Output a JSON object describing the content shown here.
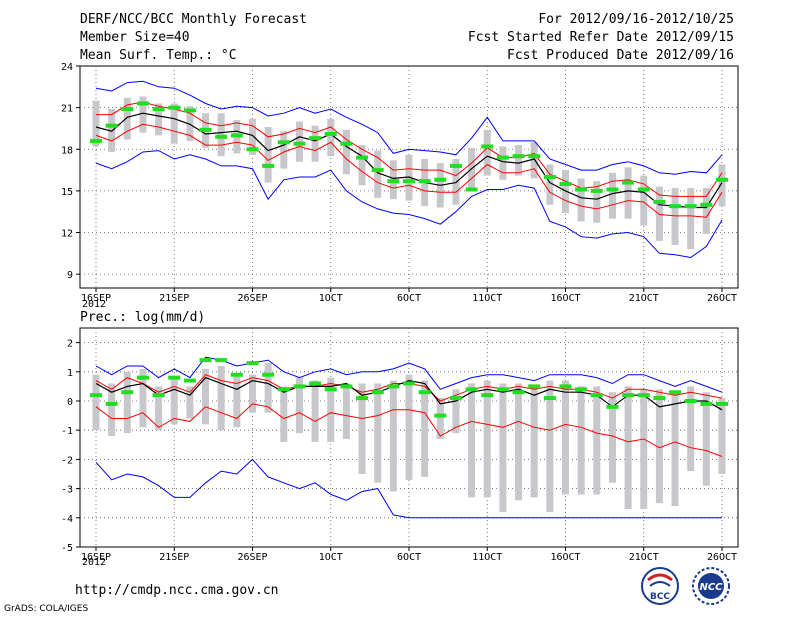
{
  "header": {
    "title": "DERF/NCC/BCC Monthly Forecast",
    "member_size": "Member Size=40",
    "variable": "Mean Surf. Temp.: °C",
    "period": "For 2012/09/16-2012/10/25",
    "started": "Fcst Started Refer Date 2012/09/15",
    "produced": "Fcst Produced Date 2012/09/16"
  },
  "footer": {
    "url": "http://cmdp.ncc.cma.gov.cn",
    "credit": "GrADS: COLA/IGES",
    "logo_left": "BCC",
    "logo_right": "NCC"
  },
  "colors": {
    "envelope": "#0000ff",
    "spread": "#ff0000",
    "mean": "#000000",
    "box": "#c8c8cc",
    "marker": "#22dd22"
  },
  "chart_data": [
    {
      "type": "line",
      "name": "temperature",
      "ylabel": "Mean Surf. Temp.: °C",
      "ylim": [
        8,
        24
      ],
      "yticks": [
        9,
        12,
        15,
        18,
        21,
        24
      ],
      "xlim": [
        0,
        40
      ],
      "xticks": [
        {
          "x": 0,
          "label": "16SEP",
          "sub": "2012"
        },
        {
          "x": 5,
          "label": "21SEP"
        },
        {
          "x": 10,
          "label": "26SEP"
        },
        {
          "x": 15,
          "label": "1OCT"
        },
        {
          "x": 20,
          "label": "6OCT"
        },
        {
          "x": 25,
          "label": "11OCT"
        },
        {
          "x": 30,
          "label": "16OCT"
        },
        {
          "x": 35,
          "label": "21OCT"
        },
        {
          "x": 40,
          "label": "26OCT"
        }
      ],
      "grid": true,
      "series": [
        {
          "name": "max",
          "role": "envelope",
          "values": [
            22.4,
            22.2,
            22.8,
            22.9,
            22.5,
            22.4,
            21.9,
            21.3,
            20.9,
            21.1,
            21.0,
            20.4,
            20.6,
            21.0,
            20.6,
            20.9,
            20.3,
            19.8,
            19.2,
            17.7,
            18.0,
            17.9,
            17.8,
            17.6,
            18.8,
            20.3,
            18.6,
            18.6,
            18.6,
            17.3,
            16.9,
            16.5,
            16.5,
            16.9,
            17.1,
            16.8,
            16.3,
            16.2,
            16.4,
            16.3,
            17.6
          ]
        },
        {
          "name": "upper",
          "role": "spread",
          "values": [
            20.5,
            20.5,
            21.2,
            21.4,
            21.1,
            20.9,
            20.6,
            19.9,
            19.7,
            19.9,
            19.7,
            18.9,
            19.1,
            19.5,
            19.2,
            19.6,
            18.7,
            18.0,
            17.4,
            16.5,
            16.6,
            16.5,
            16.5,
            16.1,
            17.0,
            18.1,
            17.4,
            17.4,
            17.7,
            16.2,
            15.7,
            15.2,
            15.3,
            15.7,
            15.8,
            15.5,
            14.7,
            14.6,
            14.6,
            14.6,
            16.3
          ]
        },
        {
          "name": "mean",
          "role": "mean",
          "values": [
            19.6,
            19.3,
            20.3,
            20.6,
            20.4,
            20.2,
            19.8,
            19.1,
            19.2,
            19.3,
            19.0,
            17.9,
            18.3,
            18.9,
            18.6,
            19.1,
            18.2,
            17.5,
            16.3,
            15.9,
            16.0,
            15.6,
            15.4,
            15.6,
            16.6,
            17.5,
            17.1,
            17.0,
            17.3,
            15.6,
            15.0,
            14.5,
            14.4,
            14.8,
            15.0,
            14.9,
            14.0,
            13.9,
            13.8,
            13.8,
            15.6
          ]
        },
        {
          "name": "lower",
          "role": "spread",
          "values": [
            19.0,
            18.6,
            19.3,
            19.8,
            19.6,
            19.3,
            19.0,
            18.3,
            18.3,
            18.5,
            18.3,
            17.2,
            17.8,
            18.2,
            17.9,
            18.5,
            17.3,
            16.4,
            15.6,
            15.2,
            15.4,
            15.0,
            14.9,
            14.9,
            15.9,
            16.9,
            16.3,
            16.3,
            16.6,
            14.9,
            14.3,
            13.9,
            13.7,
            14.0,
            14.3,
            14.2,
            13.3,
            13.2,
            13.2,
            13.1,
            14.9
          ]
        },
        {
          "name": "min",
          "role": "envelope",
          "values": [
            17.0,
            16.6,
            17.1,
            17.8,
            17.9,
            17.3,
            17.6,
            17.3,
            16.8,
            16.8,
            16.6,
            14.4,
            15.8,
            16.0,
            16.0,
            16.5,
            15.0,
            14.2,
            13.7,
            13.4,
            13.3,
            13.0,
            12.6,
            13.5,
            14.6,
            15.1,
            15.1,
            15.4,
            15.2,
            12.8,
            12.4,
            11.7,
            11.6,
            11.9,
            12.0,
            11.7,
            10.5,
            10.4,
            10.2,
            11.0,
            12.9
          ]
        },
        {
          "name": "box_top",
          "role": "box",
          "values": [
            21.5,
            20.9,
            21.7,
            21.8,
            21.3,
            21.3,
            21.1,
            20.6,
            20.6,
            20.1,
            20.2,
            19.6,
            19.3,
            20.0,
            19.7,
            20.2,
            19.4,
            18.3,
            17.9,
            17.2,
            17.6,
            17.3,
            17.0,
            17.3,
            18.1,
            19.4,
            18.2,
            18.3,
            18.5,
            16.9,
            16.5,
            15.9,
            15.7,
            16.3,
            16.7,
            16.1,
            15.3,
            15.2,
            15.2,
            15.2,
            16.9
          ]
        },
        {
          "name": "box_bottom",
          "role": "box",
          "values": [
            18.2,
            17.8,
            18.7,
            19.2,
            19.0,
            18.4,
            18.6,
            18.1,
            17.5,
            17.7,
            17.6,
            15.6,
            16.6,
            17.1,
            17.1,
            17.5,
            16.2,
            15.4,
            14.5,
            14.4,
            14.3,
            13.9,
            13.8,
            14.0,
            15.0,
            16.1,
            15.8,
            16.1,
            15.9,
            14.0,
            13.4,
            12.8,
            12.7,
            13.0,
            13.0,
            12.5,
            11.4,
            11.1,
            10.8,
            11.9,
            13.9
          ]
        },
        {
          "name": "marker",
          "role": "marker",
          "values": [
            18.6,
            19.7,
            20.9,
            21.3,
            20.9,
            21.0,
            20.8,
            19.4,
            18.9,
            19.0,
            18.0,
            16.8,
            18.5,
            18.4,
            18.8,
            19.1,
            18.4,
            17.4,
            16.5,
            15.7,
            15.7,
            15.7,
            15.8,
            16.8,
            15.1,
            18.2,
            17.4,
            17.5,
            17.5,
            16.0,
            15.5,
            15.1,
            15.0,
            15.1,
            15.6,
            15.1,
            14.2,
            13.9,
            13.9,
            14.0,
            15.8
          ]
        }
      ]
    },
    {
      "type": "line",
      "name": "precipitation",
      "ylabel": "Prec.: log(mm/d)",
      "ylim": [
        -5,
        2.5
      ],
      "yticks": [
        -5,
        -4,
        -3,
        -2,
        -1,
        0,
        1,
        2
      ],
      "xlim": [
        0,
        40
      ],
      "xticks": [
        {
          "x": 0,
          "label": "16SEP",
          "sub": "2012"
        },
        {
          "x": 5,
          "label": "21SEP"
        },
        {
          "x": 10,
          "label": "26SEP"
        },
        {
          "x": 15,
          "label": "1OCT"
        },
        {
          "x": 20,
          "label": "6OCT"
        },
        {
          "x": 25,
          "label": "11OCT"
        },
        {
          "x": 30,
          "label": "16OCT"
        },
        {
          "x": 35,
          "label": "21OCT"
        },
        {
          "x": 40,
          "label": "26OCT"
        }
      ],
      "grid": true,
      "series": [
        {
          "name": "max",
          "role": "envelope",
          "values": [
            1.2,
            0.9,
            1.2,
            1.2,
            0.8,
            1.1,
            0.8,
            1.5,
            1.4,
            1.2,
            1.3,
            1.4,
            1.0,
            0.8,
            1.0,
            1.1,
            0.9,
            1.0,
            1.0,
            1.1,
            1.3,
            1.1,
            0.4,
            0.6,
            0.8,
            0.9,
            0.9,
            0.8,
            0.7,
            0.9,
            0.9,
            0.9,
            0.8,
            0.6,
            0.9,
            0.9,
            0.7,
            0.5,
            0.7,
            0.5,
            0.3
          ]
        },
        {
          "name": "upper",
          "role": "spread",
          "values": [
            0.7,
            0.4,
            0.8,
            0.6,
            0.3,
            0.5,
            0.3,
            0.9,
            0.7,
            0.6,
            0.8,
            0.7,
            0.4,
            0.5,
            0.5,
            0.6,
            0.5,
            0.3,
            0.4,
            0.6,
            0.6,
            0.5,
            0.0,
            0.2,
            0.4,
            0.5,
            0.4,
            0.5,
            0.4,
            0.5,
            0.4,
            0.4,
            0.3,
            0.1,
            0.4,
            0.4,
            0.3,
            0.2,
            0.3,
            0.2,
            0.1
          ]
        },
        {
          "name": "mean",
          "role": "mean",
          "values": [
            0.6,
            0.3,
            0.5,
            0.6,
            0.2,
            0.4,
            0.2,
            0.8,
            0.6,
            0.4,
            0.7,
            0.6,
            0.3,
            0.5,
            0.5,
            0.5,
            0.6,
            0.2,
            0.3,
            0.5,
            0.7,
            0.6,
            -0.1,
            0.0,
            0.3,
            0.4,
            0.3,
            0.4,
            0.2,
            0.4,
            0.3,
            0.3,
            0.2,
            -0.2,
            0.2,
            0.2,
            -0.2,
            -0.1,
            0.0,
            0.0,
            -0.3
          ]
        },
        {
          "name": "lower",
          "role": "spread",
          "values": [
            -0.2,
            -0.6,
            -0.6,
            -0.4,
            -0.9,
            -0.6,
            -0.7,
            -0.2,
            -0.4,
            -0.6,
            -0.1,
            -0.2,
            -0.6,
            -0.4,
            -0.7,
            -0.4,
            -0.5,
            -0.6,
            -0.5,
            -0.3,
            -0.3,
            -0.4,
            -1.2,
            -0.9,
            -0.7,
            -0.8,
            -0.9,
            -0.7,
            -0.9,
            -1.0,
            -0.8,
            -0.9,
            -1.1,
            -1.2,
            -1.4,
            -1.3,
            -1.6,
            -1.4,
            -1.6,
            -1.7,
            -1.9
          ]
        },
        {
          "name": "min",
          "role": "envelope",
          "values": [
            -2.1,
            -2.7,
            -2.5,
            -2.6,
            -2.9,
            -3.3,
            -3.3,
            -2.8,
            -2.4,
            -2.5,
            -2.0,
            -2.6,
            -2.8,
            -3.0,
            -2.8,
            -3.2,
            -3.4,
            -3.1,
            -3.0,
            -3.9,
            -4.0,
            -4.0,
            -4.0,
            -4.0,
            -4.0,
            -4.0,
            -4.0,
            -4.0,
            -4.0,
            -4.0,
            -4.0,
            -4.0,
            -4.0,
            -4.0,
            -4.0,
            -4.0,
            -4.0,
            -4.0,
            -4.0,
            -4.0,
            -4.0
          ]
        },
        {
          "name": "box_top",
          "role": "box",
          "values": [
            0.9,
            0.6,
            1.0,
            1.1,
            0.5,
            0.8,
            0.5,
            1.1,
            1.2,
            0.9,
            0.9,
            1.3,
            0.5,
            0.8,
            0.7,
            0.8,
            0.6,
            0.6,
            0.6,
            0.7,
            0.9,
            0.7,
            0.1,
            0.4,
            0.6,
            0.7,
            0.6,
            0.6,
            0.5,
            0.7,
            0.7,
            0.5,
            0.5,
            0.3,
            0.5,
            0.4,
            0.4,
            0.3,
            0.5,
            0.3,
            0.1
          ]
        },
        {
          "name": "box_bottom",
          "role": "box",
          "values": [
            -1.0,
            -1.2,
            -1.1,
            -0.9,
            -1.0,
            -0.8,
            -0.6,
            -0.8,
            -1.0,
            -0.9,
            -0.4,
            -0.4,
            -1.4,
            -1.1,
            -1.4,
            -1.4,
            -1.3,
            -2.5,
            -2.8,
            -3.1,
            -2.7,
            -2.6,
            -1.3,
            -1.1,
            -3.3,
            -3.3,
            -3.8,
            -3.4,
            -3.3,
            -3.8,
            -3.2,
            -3.2,
            -3.2,
            -2.8,
            -3.7,
            -3.7,
            -3.5,
            -3.6,
            -2.4,
            -2.9,
            -2.5
          ]
        },
        {
          "name": "marker",
          "role": "marker",
          "values": [
            0.2,
            -0.1,
            0.3,
            0.8,
            0.2,
            0.8,
            0.7,
            1.4,
            1.4,
            0.9,
            1.3,
            0.9,
            0.4,
            0.5,
            0.6,
            0.4,
            0.5,
            0.1,
            0.3,
            0.5,
            0.6,
            0.3,
            -0.5,
            0.1,
            0.4,
            0.2,
            0.4,
            0.3,
            0.5,
            0.1,
            0.5,
            0.4,
            0.2,
            -0.2,
            0.2,
            0.2,
            0.1,
            0.3,
            0.0,
            -0.1,
            -0.1
          ]
        }
      ]
    }
  ]
}
